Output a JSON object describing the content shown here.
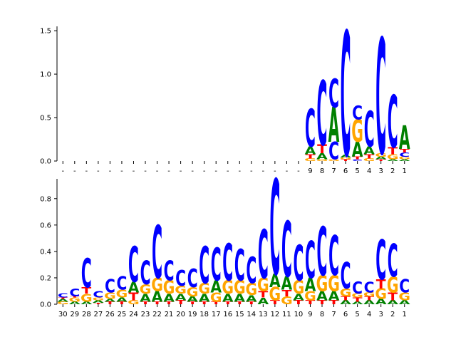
{
  "colors": {
    "A": "#008000",
    "C": "#0000ff",
    "G": "#ffa500",
    "T": "#ff0000"
  },
  "chart_data": [
    {
      "type": "sequence-logo",
      "ylim": [
        0,
        1.55
      ],
      "yticks": [
        "0.0",
        "0.5",
        "1.0",
        "1.5"
      ],
      "positions": [
        "-",
        "-",
        "-",
        "-",
        "-",
        "-",
        "-",
        "-",
        "-",
        "-",
        "-",
        "-",
        "-",
        "-",
        "-",
        "-",
        "-",
        "-",
        "-",
        "-",
        "-",
        "9",
        "8",
        "7",
        "6",
        "5",
        "4",
        "3",
        "2",
        "1"
      ],
      "stacks": [
        [],
        [],
        [],
        [],
        [],
        [],
        [],
        [],
        [],
        [],
        [],
        [],
        [],
        [],
        [],
        [],
        [],
        [],
        [],
        [],
        [],
        [
          {
            "b": "G",
            "h": 0.03
          },
          {
            "b": "T",
            "h": 0.05
          },
          {
            "b": "A",
            "h": 0.09
          },
          {
            "b": "C",
            "h": 0.43
          }
        ],
        [
          {
            "b": "G",
            "h": 0.02
          },
          {
            "b": "A",
            "h": 0.07
          },
          {
            "b": "T",
            "h": 0.1
          },
          {
            "b": "C",
            "h": 0.74
          }
        ],
        [
          {
            "b": "G",
            "h": 0.02
          },
          {
            "b": "C",
            "h": 0.2
          },
          {
            "b": "A",
            "h": 0.4
          },
          {
            "b": "C",
            "h": 0.33
          }
        ],
        [
          {
            "b": "T",
            "h": 0.02
          },
          {
            "b": "G",
            "h": 0.02
          },
          {
            "b": "A",
            "h": 0.03
          },
          {
            "b": "C",
            "h": 1.43
          }
        ],
        [
          {
            "b": "C",
            "h": 0.02
          },
          {
            "b": "T",
            "h": 0.03
          },
          {
            "b": "A",
            "h": 0.17
          },
          {
            "b": "G",
            "h": 0.26
          },
          {
            "b": "C",
            "h": 0.16
          }
        ],
        [
          {
            "b": "G",
            "h": 0.03
          },
          {
            "b": "T",
            "h": 0.05
          },
          {
            "b": "A",
            "h": 0.09
          },
          {
            "b": "C",
            "h": 0.41
          }
        ],
        [
          {
            "b": "T",
            "h": 0.02
          },
          {
            "b": "A",
            "h": 0.03
          },
          {
            "b": "G",
            "h": 0.04
          },
          {
            "b": "C",
            "h": 1.33
          }
        ],
        [
          {
            "b": "A",
            "h": 0.02
          },
          {
            "b": "G",
            "h": 0.06
          },
          {
            "b": "T",
            "h": 0.08
          },
          {
            "b": "C",
            "h": 0.6
          }
        ],
        [
          {
            "b": "A",
            "h": 0.02
          },
          {
            "b": "G",
            "h": 0.03
          },
          {
            "b": "C",
            "h": 0.05
          },
          {
            "b": "T",
            "h": 0.04
          },
          {
            "b": "A",
            "h": 0.27
          }
        ]
      ]
    },
    {
      "type": "sequence-logo",
      "ylim": [
        0,
        0.95
      ],
      "yticks": [
        "0.0",
        "0.2",
        "0.4",
        "0.6",
        "0.8"
      ],
      "positions": [
        "30",
        "29",
        "28",
        "27",
        "26",
        "25",
        "24",
        "23",
        "22",
        "21",
        "20",
        "19",
        "18",
        "17",
        "16",
        "15",
        "14",
        "13",
        "12",
        "11",
        "10",
        "9",
        "8",
        "7",
        "6",
        "5",
        "4",
        "3",
        "2",
        "1"
      ],
      "stacks": [
        [
          {
            "b": "G",
            "h": 0.02
          },
          {
            "b": "A",
            "h": 0.02
          },
          {
            "b": "T",
            "h": 0.01
          },
          {
            "b": "C",
            "h": 0.03
          }
        ],
        [
          {
            "b": "A",
            "h": 0.02
          },
          {
            "b": "G",
            "h": 0.03
          },
          {
            "b": "T",
            "h": 0.01
          },
          {
            "b": "C",
            "h": 0.06
          }
        ],
        [
          {
            "b": "A",
            "h": 0.02
          },
          {
            "b": "G",
            "h": 0.06
          },
          {
            "b": "T",
            "h": 0.05
          },
          {
            "b": "C",
            "h": 0.22
          }
        ],
        [
          {
            "b": "T",
            "h": 0.01
          },
          {
            "b": "A",
            "h": 0.02
          },
          {
            "b": "G",
            "h": 0.02
          },
          {
            "b": "C",
            "h": 0.05
          }
        ],
        [
          {
            "b": "T",
            "h": 0.02
          },
          {
            "b": "A",
            "h": 0.02
          },
          {
            "b": "G",
            "h": 0.05
          },
          {
            "b": "C",
            "h": 0.1
          }
        ],
        [
          {
            "b": "T",
            "h": 0.02
          },
          {
            "b": "A",
            "h": 0.03
          },
          {
            "b": "G",
            "h": 0.06
          },
          {
            "b": "C",
            "h": 0.1
          }
        ],
        [
          {
            "b": "G",
            "h": 0.03
          },
          {
            "b": "T",
            "h": 0.06
          },
          {
            "b": "A",
            "h": 0.08
          },
          {
            "b": "C",
            "h": 0.27
          }
        ],
        [
          {
            "b": "T",
            "h": 0.02
          },
          {
            "b": "A",
            "h": 0.06
          },
          {
            "b": "G",
            "h": 0.07
          },
          {
            "b": "C",
            "h": 0.18
          }
        ],
        [
          {
            "b": "T",
            "h": 0.02
          },
          {
            "b": "A",
            "h": 0.08
          },
          {
            "b": "G",
            "h": 0.1
          },
          {
            "b": "C",
            "h": 0.4
          }
        ],
        [
          {
            "b": "T",
            "h": 0.02
          },
          {
            "b": "A",
            "h": 0.06
          },
          {
            "b": "G",
            "h": 0.1
          },
          {
            "b": "C",
            "h": 0.15
          }
        ],
        [
          {
            "b": "T",
            "h": 0.03
          },
          {
            "b": "A",
            "h": 0.05
          },
          {
            "b": "G",
            "h": 0.06
          },
          {
            "b": "C",
            "h": 0.12
          }
        ],
        [
          {
            "b": "T",
            "h": 0.02
          },
          {
            "b": "A",
            "h": 0.04
          },
          {
            "b": "G",
            "h": 0.07
          },
          {
            "b": "C",
            "h": 0.14
          }
        ],
        [
          {
            "b": "T",
            "h": 0.02
          },
          {
            "b": "A",
            "h": 0.06
          },
          {
            "b": "G",
            "h": 0.08
          },
          {
            "b": "C",
            "h": 0.28
          }
        ],
        [
          {
            "b": "T",
            "h": 0.02
          },
          {
            "b": "G",
            "h": 0.07
          },
          {
            "b": "A",
            "h": 0.09
          },
          {
            "b": "C",
            "h": 0.25
          }
        ],
        [
          {
            "b": "T",
            "h": 0.02
          },
          {
            "b": "A",
            "h": 0.06
          },
          {
            "b": "G",
            "h": 0.1
          },
          {
            "b": "C",
            "h": 0.28
          }
        ],
        [
          {
            "b": "T",
            "h": 0.02
          },
          {
            "b": "A",
            "h": 0.06
          },
          {
            "b": "G",
            "h": 0.1
          },
          {
            "b": "C",
            "h": 0.24
          }
        ],
        [
          {
            "b": "T",
            "h": 0.02
          },
          {
            "b": "A",
            "h": 0.05
          },
          {
            "b": "G",
            "h": 0.09
          },
          {
            "b": "C",
            "h": 0.2
          }
        ],
        [
          {
            "b": "A",
            "h": 0.05
          },
          {
            "b": "T",
            "h": 0.05
          },
          {
            "b": "G",
            "h": 0.1
          },
          {
            "b": "C",
            "h": 0.37
          }
        ],
        [
          {
            "b": "T",
            "h": 0.03
          },
          {
            "b": "G",
            "h": 0.1
          },
          {
            "b": "A",
            "h": 0.1
          },
          {
            "b": "C",
            "h": 0.72
          }
        ],
        [
          {
            "b": "G",
            "h": 0.06
          },
          {
            "b": "T",
            "h": 0.05
          },
          {
            "b": "A",
            "h": 0.1
          },
          {
            "b": "C",
            "h": 0.42
          }
        ],
        [
          {
            "b": "T",
            "h": 0.03
          },
          {
            "b": "A",
            "h": 0.05
          },
          {
            "b": "G",
            "h": 0.1
          },
          {
            "b": "C",
            "h": 0.27
          }
        ],
        [
          {
            "b": "T",
            "h": 0.03
          },
          {
            "b": "G",
            "h": 0.07
          },
          {
            "b": "A",
            "h": 0.1
          },
          {
            "b": "C",
            "h": 0.28
          }
        ],
        [
          {
            "b": "T",
            "h": 0.03
          },
          {
            "b": "A",
            "h": 0.07
          },
          {
            "b": "G",
            "h": 0.12
          },
          {
            "b": "C",
            "h": 0.37
          }
        ],
        [
          {
            "b": "T",
            "h": 0.03
          },
          {
            "b": "A",
            "h": 0.07
          },
          {
            "b": "G",
            "h": 0.12
          },
          {
            "b": "C",
            "h": 0.3
          }
        ],
        [
          {
            "b": "A",
            "h": 0.03
          },
          {
            "b": "T",
            "h": 0.03
          },
          {
            "b": "G",
            "h": 0.06
          },
          {
            "b": "C",
            "h": 0.2
          }
        ],
        [
          {
            "b": "A",
            "h": 0.02
          },
          {
            "b": "T",
            "h": 0.03
          },
          {
            "b": "G",
            "h": 0.03
          },
          {
            "b": "C",
            "h": 0.09
          }
        ],
        [
          {
            "b": "A",
            "h": 0.03
          },
          {
            "b": "T",
            "h": 0.03
          },
          {
            "b": "G",
            "h": 0.03
          },
          {
            "b": "C",
            "h": 0.08
          }
        ],
        [
          {
            "b": "A",
            "h": 0.04
          },
          {
            "b": "G",
            "h": 0.08
          },
          {
            "b": "T",
            "h": 0.07
          },
          {
            "b": "C",
            "h": 0.3
          }
        ],
        [
          {
            "b": "A",
            "h": 0.03
          },
          {
            "b": "T",
            "h": 0.06
          },
          {
            "b": "G",
            "h": 0.12
          },
          {
            "b": "C",
            "h": 0.25
          }
        ],
        [
          {
            "b": "A",
            "h": 0.03
          },
          {
            "b": "G",
            "h": 0.06
          },
          {
            "b": "C",
            "h": 0.1
          }
        ]
      ]
    }
  ]
}
